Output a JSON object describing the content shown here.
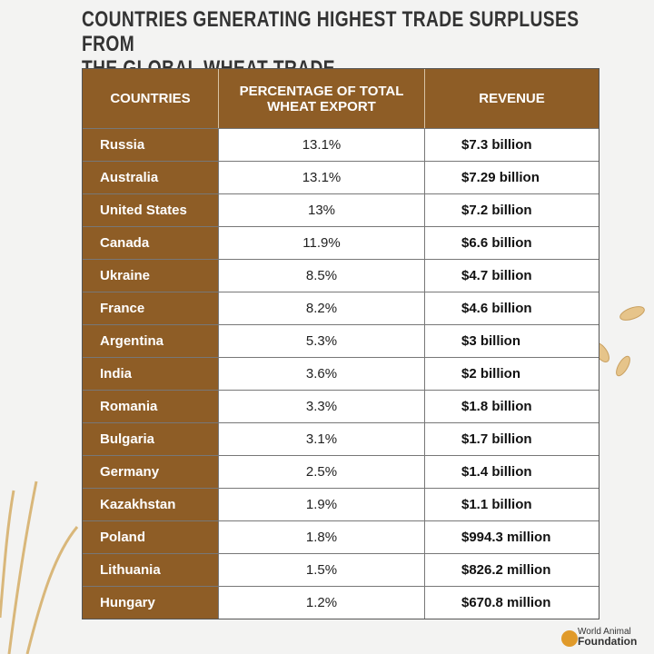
{
  "title_lines": [
    "COUNTRIES GENERATING HIGHEST TRADE SURPLUSES FROM",
    "THE GLOBAL WHEAT TRADE"
  ],
  "table": {
    "headers": [
      "COUNTRIES",
      "PERCENTAGE OF TOTAL WHEAT EXPORT",
      "REVENUE"
    ],
    "rows": [
      [
        "Russia",
        "13.1%",
        "$7.3 billion"
      ],
      [
        "Australia",
        "13.1%",
        "$7.29 billion"
      ],
      [
        "United States",
        "13%",
        "$7.2 billion"
      ],
      [
        "Canada",
        "11.9%",
        "$6.6 billion"
      ],
      [
        "Ukraine",
        "8.5%",
        "$4.7 billion"
      ],
      [
        "France",
        "8.2%",
        "$4.6 billion"
      ],
      [
        "Argentina",
        "5.3%",
        "$3 billion"
      ],
      [
        "India",
        "3.6%",
        "$2 billion"
      ],
      [
        "Romania",
        "3.3%",
        "$1.8 billion"
      ],
      [
        "Bulgaria",
        "3.1%",
        "$1.7 billion"
      ],
      [
        "Germany",
        "2.5%",
        "$1.4 billion"
      ],
      [
        "Kazakhstan",
        "1.9%",
        "$1.1 billion"
      ],
      [
        "Poland",
        "1.8%",
        "$994.3 million"
      ],
      [
        "Lithuania",
        "1.5%",
        "$826.2 million"
      ],
      [
        "Hungary",
        "1.2%",
        "$670.8 million"
      ]
    ]
  },
  "footer": [
    "World Animal",
    "Foundation"
  ]
}
